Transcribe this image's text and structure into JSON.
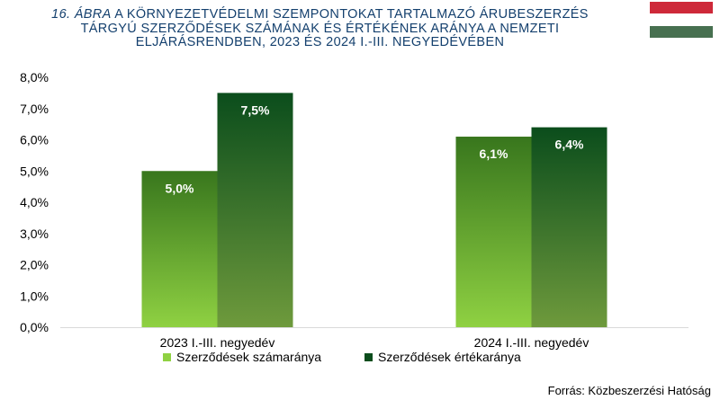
{
  "title": {
    "number": "16. ÁBRA",
    "line1_rest": "A KÖRNYEZETVÉDELMI SZEMPONTOKAT TARTALMAZÓ ÁRUBESZERZÉS",
    "line2": "TÁRGYÚ SZERZŐDÉSEK SZÁMÁNAK ÉS ÉRTÉKÉNEK ARÁNYA A NEMZETI",
    "line3": "ELJÁRÁSRENDBEN, 2023 ÉS 2024 I.-III. NEGYEDÉVÉBEN"
  },
  "flag": {
    "colors": [
      "#ce2939",
      "#ffffff",
      "#477050"
    ]
  },
  "source": "Forrás: Közbeszerzési Hatóság",
  "colors": {
    "series1_top": "#38761d",
    "series1_bottom": "#8fd142",
    "series2_top": "#0b4d1c",
    "series2_bottom": "#6e9a3c",
    "axis": "#000000",
    "grid": "#d9d9d9"
  },
  "chart_data": {
    "type": "bar",
    "categories": [
      "2023 I.-III. negyedév",
      "2024 I.-III. negyedév"
    ],
    "series": [
      {
        "name": "Szerződések számaránya",
        "values": [
          5.0,
          6.1
        ],
        "labels": [
          "5,0%",
          "6,1%"
        ]
      },
      {
        "name": "Szerződések értékaránya",
        "values": [
          7.5,
          6.4
        ],
        "labels": [
          "7,5%",
          "6,4%"
        ]
      }
    ],
    "ylim": [
      0,
      8
    ],
    "yticks": [
      "0,0%",
      "1,0%",
      "2,0%",
      "3,0%",
      "4,0%",
      "5,0%",
      "6,0%",
      "7,0%",
      "8,0%"
    ],
    "legend": "bottom",
    "grid": false
  }
}
